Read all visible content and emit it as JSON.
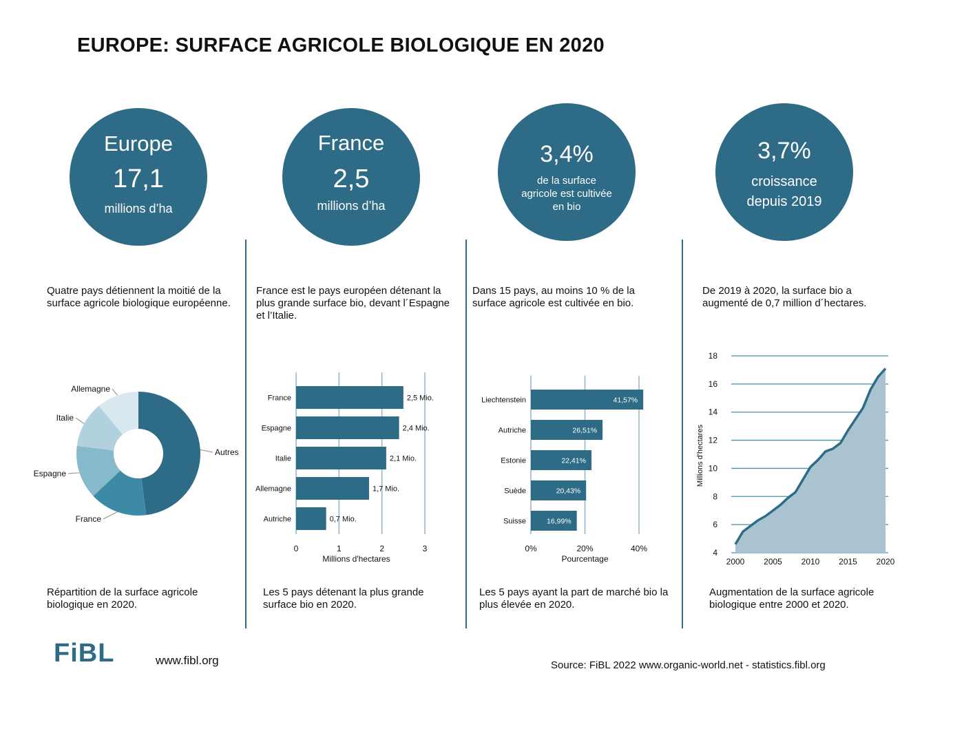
{
  "title": "EUROPE: SURFACE AGRICOLE BIOLOGIQUE EN 2020",
  "circles": [
    {
      "line1": "Europe",
      "line2": "17,1",
      "line3": "millions d’ha"
    },
    {
      "line1": "France",
      "line2": "2,5",
      "line3": "millions d’ha"
    },
    {
      "line1": "3,4%",
      "line2": "de la surface",
      "line3": "agricole est cultivée",
      "line4": "en bio"
    },
    {
      "line1": "3,7%",
      "line2": "croissance",
      "line3": "depuis 2019"
    }
  ],
  "paragraphs": [
    "Quatre pays détiennent la moitié de la surface agricole biologique européenne.",
    "France est le pays européen détenant la plus grande surface bio, devant l´Espagne et l’Italie.",
    "Dans 15 pays, au moins 10 % de la surface agricole est cultivée en bio.",
    "De 2019 à 2020, la surface bio a augmenté de 0,7 million d´hectares."
  ],
  "captions": [
    "Répartition de la surface  agricole biologique en 2020.",
    "Les 5 pays détenant la plus grande surface bio en 2020.",
    "Les 5 pays ayant la part de marché bio la plus élevée en 2020.",
    "Augmentation de la surface agricole biologique entre 2000 et 2020."
  ],
  "chart_data": [
    {
      "type": "pie",
      "variant": "donut",
      "categories": [
        "Autres",
        "France",
        "Espagne",
        "Italie",
        "Allemagne"
      ],
      "values": [
        48,
        15,
        14,
        12,
        11
      ],
      "colors": [
        "#2e6b86",
        "#3d8aa6",
        "#86b9cb",
        "#b0d1dd",
        "#d9e8ef"
      ]
    },
    {
      "type": "bar",
      "orientation": "horizontal",
      "categories": [
        "France",
        "Espagne",
        "Italie",
        "Allemagne",
        "Autriche"
      ],
      "values": [
        2.5,
        2.4,
        2.1,
        1.7,
        0.7
      ],
      "labels": [
        "2,5 Mio.",
        "2,4 Mio.",
        "2,1 Mio.",
        "1,7 Mio.",
        "0,7 Mio."
      ],
      "xlabel": "Millions d'hectares",
      "xticks": [
        "0",
        "1",
        "2",
        "3"
      ],
      "xlim": [
        0,
        3
      ],
      "color": "#2e6b86"
    },
    {
      "type": "bar",
      "orientation": "horizontal",
      "categories": [
        "Liechtenstein",
        "Autriche",
        "Estonie",
        "Suède",
        "Suisse"
      ],
      "values": [
        41.57,
        26.51,
        22.41,
        20.43,
        16.99
      ],
      "labels": [
        "41,57%",
        "26,51%",
        "22,41%",
        "20,43%",
        "16,99%"
      ],
      "xlabel": "Pourcentage",
      "xticks": [
        "0%",
        "20%",
        "40%"
      ],
      "xlim": [
        0,
        40
      ],
      "color": "#2e6b86"
    },
    {
      "type": "area",
      "x": [
        2000,
        2001,
        2002,
        2003,
        2004,
        2005,
        2006,
        2007,
        2008,
        2009,
        2010,
        2011,
        2012,
        2013,
        2014,
        2015,
        2016,
        2017,
        2018,
        2019,
        2020
      ],
      "values": [
        4.6,
        5.5,
        5.9,
        6.3,
        6.6,
        7.0,
        7.4,
        7.9,
        8.3,
        9.2,
        10.1,
        10.6,
        11.2,
        11.4,
        11.8,
        12.7,
        13.5,
        14.3,
        15.6,
        16.5,
        17.1
      ],
      "ylabel": "Millions d'hectares",
      "ylim": [
        4,
        18
      ],
      "yticks": [
        4,
        6,
        8,
        10,
        12,
        14,
        16,
        18
      ],
      "xticks": [
        2000,
        2005,
        2010,
        2015,
        2020
      ],
      "xlim": [
        2000,
        2020
      ],
      "grid": true,
      "line_color": "#2e6b86",
      "fill_color": "#a9c3d1"
    }
  ],
  "footer": {
    "logo": "FiBL",
    "website": "www.fibl.org",
    "source": "Source: FiBL 2022 www.organic-world.net - statistics.fibl.org"
  }
}
